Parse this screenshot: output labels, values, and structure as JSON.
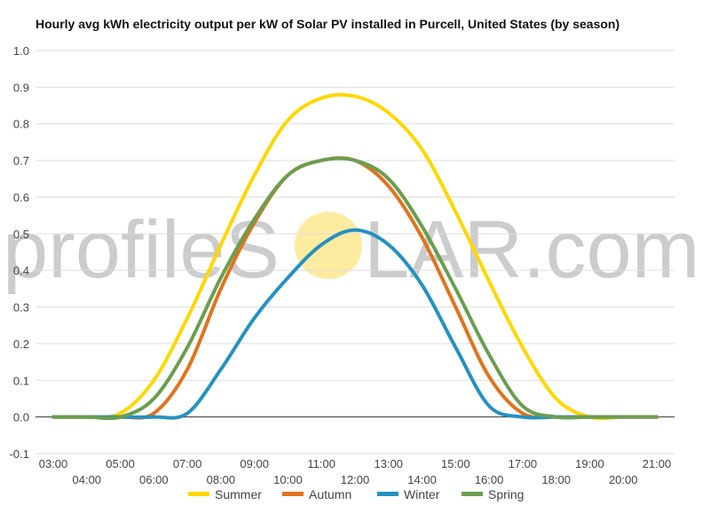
{
  "watermark": {
    "text_left": "profileS",
    "text_right": "LAR.com",
    "sun_color": "#fdeba0"
  },
  "chart_data": {
    "type": "line",
    "title": "Hourly avg kWh electricity output per kW of Solar PV installed in Purcell, United States (by season)",
    "xlabel": "",
    "ylabel": "",
    "x": [
      "03:00",
      "04:00",
      "05:00",
      "06:00",
      "07:00",
      "08:00",
      "09:00",
      "10:00",
      "11:00",
      "12:00",
      "13:00",
      "14:00",
      "15:00",
      "16:00",
      "17:00",
      "18:00",
      "19:00",
      "20:00",
      "21:00"
    ],
    "ylim": [
      -0.1,
      1.0
    ],
    "yticks": [
      "1.0",
      "0.9",
      "0.8",
      "0.7",
      "0.6",
      "0.5",
      "0.4",
      "0.3",
      "0.2",
      "0.1",
      "0.0",
      "-0.1"
    ],
    "grid": true,
    "legend_position": "bottom",
    "series": [
      {
        "name": "Summer",
        "color": "#ffd700",
        "values": [
          0.0,
          0.0,
          0.01,
          0.1,
          0.27,
          0.47,
          0.66,
          0.81,
          0.87,
          0.875,
          0.83,
          0.73,
          0.56,
          0.37,
          0.19,
          0.05,
          0.0,
          0.0,
          0.0
        ]
      },
      {
        "name": "Autumn",
        "color": "#e0731d",
        "values": [
          0.0,
          0.0,
          0.0,
          0.01,
          0.13,
          0.35,
          0.53,
          0.66,
          0.7,
          0.7,
          0.63,
          0.49,
          0.3,
          0.11,
          0.01,
          0.0,
          0.0,
          0.0,
          0.0
        ]
      },
      {
        "name": "Winter",
        "color": "#2591c2",
        "values": [
          0.0,
          0.0,
          0.0,
          0.0,
          0.01,
          0.13,
          0.27,
          0.38,
          0.47,
          0.51,
          0.47,
          0.36,
          0.19,
          0.03,
          0.0,
          0.0,
          0.0,
          0.0,
          0.0
        ]
      },
      {
        "name": "Spring",
        "color": "#6a9e4f",
        "values": [
          0.0,
          0.0,
          0.0,
          0.05,
          0.19,
          0.38,
          0.54,
          0.66,
          0.7,
          0.7,
          0.65,
          0.52,
          0.35,
          0.17,
          0.03,
          0.0,
          0.0,
          0.0,
          0.0
        ]
      }
    ]
  }
}
